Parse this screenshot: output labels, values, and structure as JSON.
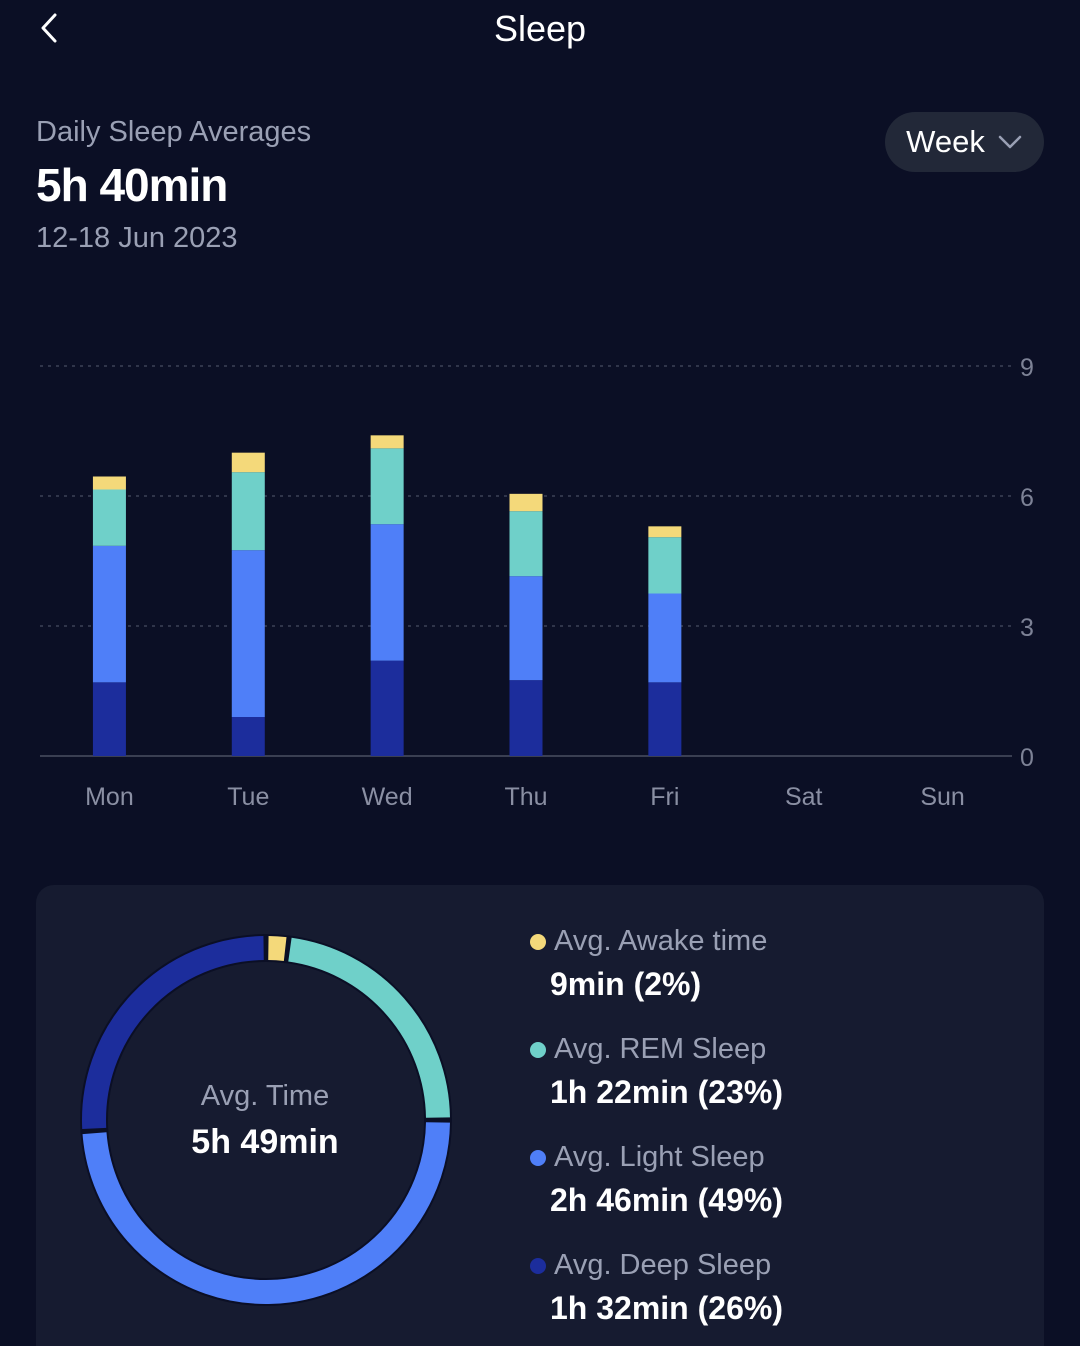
{
  "header": {
    "title": "Sleep",
    "back_icon": "chevron-left-icon"
  },
  "summary": {
    "label": "Daily Sleep Averages",
    "value": "5h 40min",
    "date_range": "12-18 Jun 2023"
  },
  "period_select": {
    "selected": "Week",
    "icon": "chevron-down-icon"
  },
  "colors": {
    "awake": "#f4d97a",
    "rem": "#6fd0c9",
    "light": "#4f7ff8",
    "deep": "#1c2d9c",
    "background": "#0b0f25",
    "card": "#161b30"
  },
  "chart_data": {
    "type": "bar",
    "stacked": true,
    "categories": [
      "Mon",
      "Tue",
      "Wed",
      "Thu",
      "Fri",
      "Sat",
      "Sun"
    ],
    "ylim": [
      0,
      9
    ],
    "yticks": [
      "0",
      "3",
      "6",
      "9"
    ],
    "y_axis_position": "right",
    "grid": true,
    "series": [
      {
        "key": "deep",
        "values": [
          1.7,
          0.9,
          2.2,
          1.75,
          1.7,
          0,
          0
        ]
      },
      {
        "key": "light",
        "values": [
          3.15,
          3.85,
          3.15,
          2.4,
          2.05,
          0,
          0
        ]
      },
      {
        "key": "rem",
        "values": [
          1.3,
          1.8,
          1.75,
          1.5,
          1.3,
          0,
          0
        ]
      },
      {
        "key": "awake",
        "values": [
          0.3,
          0.45,
          0.3,
          0.4,
          0.25,
          0,
          0
        ]
      }
    ]
  },
  "breakdown": {
    "center_label": "Avg. Time",
    "center_value": "5h 49min",
    "donut": [
      {
        "key": "awake",
        "percent": 2
      },
      {
        "key": "rem",
        "percent": 23
      },
      {
        "key": "light",
        "percent": 49
      },
      {
        "key": "deep",
        "percent": 26
      }
    ],
    "items": [
      {
        "key": "awake",
        "label": "Avg. Awake time",
        "value": "9min (2%)"
      },
      {
        "key": "rem",
        "label": "Avg. REM Sleep",
        "value": "1h 22min (23%)"
      },
      {
        "key": "light",
        "label": "Avg. Light Sleep",
        "value": "2h 46min (49%)"
      },
      {
        "key": "deep",
        "label": "Avg. Deep Sleep",
        "value": "1h 32min (26%)"
      }
    ]
  }
}
